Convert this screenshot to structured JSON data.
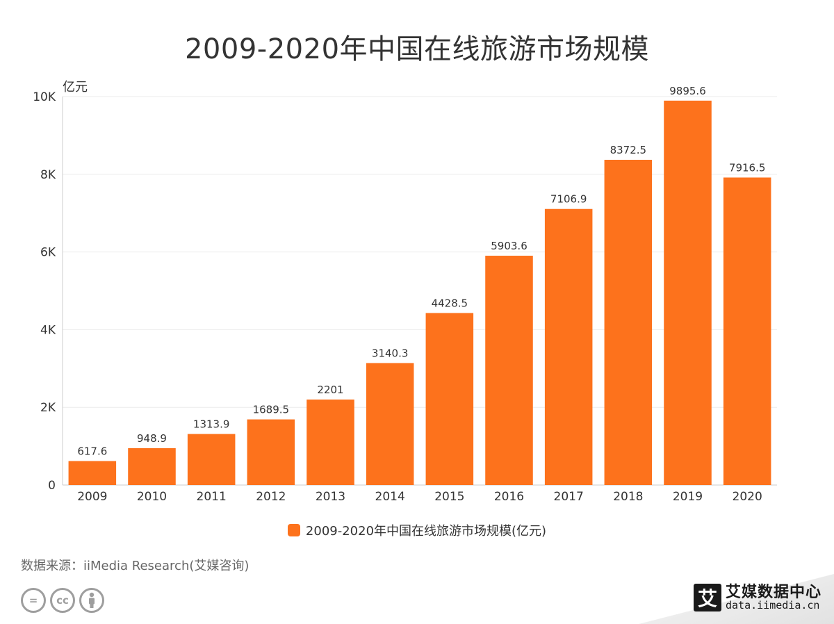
{
  "page": {
    "source_text": "数据来源：iiMedia Research(艾媒咨询)",
    "brand": {
      "logo_char": "艾",
      "name": "艾媒数据中心",
      "url": "data.iimedia.cn"
    },
    "license_icons": [
      "=",
      "cc",
      "person-icon"
    ]
  },
  "colors": {
    "bar": "#fd721c",
    "grid": "#ebebeb",
    "axis": "#cccccc",
    "text": "#333333"
  },
  "chart_data": {
    "type": "bar",
    "title": "2009-2020年中国在线旅游市场规模",
    "ylabel": "亿元",
    "xlabel": "",
    "categories": [
      "2009",
      "2010",
      "2011",
      "2012",
      "2013",
      "2014",
      "2015",
      "2016",
      "2017",
      "2018",
      "2019",
      "2020"
    ],
    "series": [
      {
        "name": "2009-2020年中国在线旅游市场规模(亿元)",
        "values": [
          617.6,
          948.9,
          1313.9,
          1689.5,
          2201,
          3140.3,
          4428.5,
          5903.6,
          7106.9,
          8372.5,
          9895.6,
          7916.5
        ]
      }
    ],
    "ylim": [
      0,
      10000
    ],
    "yticks": [
      0,
      2000,
      4000,
      6000,
      8000,
      10000
    ],
    "ytick_labels": [
      "0",
      "2K",
      "4K",
      "6K",
      "8K",
      "10K"
    ],
    "grid": true,
    "legend": "bottom-center"
  }
}
